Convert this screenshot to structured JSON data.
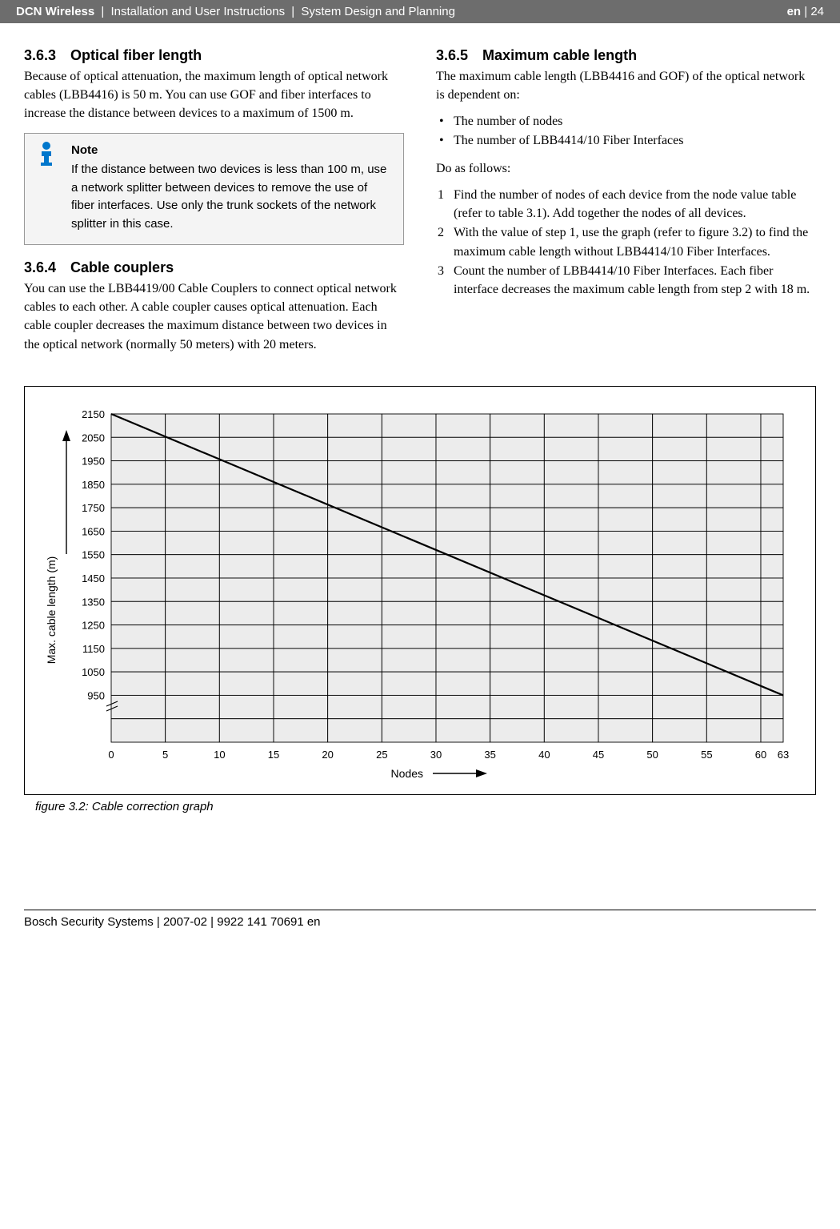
{
  "header": {
    "product": "DCN Wireless",
    "sep": " | ",
    "doc": "Installation and User Instructions",
    "section": "System Design and Planning",
    "lang": "en",
    "page": "24"
  },
  "sections": {
    "s363": {
      "num": "3.6.3",
      "title": "Optical fiber length",
      "body": "Because of optical attenuation, the maximum length of optical network cables (LBB4416) is 50 m. You can use GOF and fiber interfaces to increase the distance between devices to a maximum of 1500 m."
    },
    "note": {
      "title": "Note",
      "body": "If the distance between two devices is less than 100 m, use a network splitter between devices to remove the use of fiber interfaces. Use only the trunk sockets of the network splitter in this case."
    },
    "s364": {
      "num": "3.6.4",
      "title": "Cable couplers",
      "body": "You can use the LBB4419/00 Cable Couplers to connect optical network cables to each other. A cable coupler causes optical attenuation. Each cable coupler decreases the maximum distance between two devices in the optical network (normally 50 meters) with 20 meters."
    },
    "s365": {
      "num": "3.6.5",
      "title": "Maximum cable length",
      "intro": "The maximum cable length (LBB4416 and GOF) of the optical network is dependent on:",
      "bullets": [
        "The number of nodes",
        "The number of LBB4414/10 Fiber Interfaces"
      ],
      "do_as": "Do as follows:",
      "steps": [
        "Find the number of nodes of each device from the node value table (refer to table 3.1). Add together the nodes of all devices.",
        "With the value of step 1, use the graph (refer to figure 3.2) to find the maximum cable length without LBB4414/10 Fiber Interfaces.",
        "Count the number of LBB4414/10 Fiber Interfaces. Each fiber interface decreases the maximum cable length from step 2 with 18 m."
      ]
    }
  },
  "figure": {
    "caption": "figure 3.2: Cable correction graph",
    "ylabel": "Max. cable length (m)",
    "xlabel": "Nodes",
    "y_ticks": [
      2150,
      2050,
      1950,
      1850,
      1750,
      1650,
      1550,
      1450,
      1350,
      1250,
      1150,
      1050,
      950
    ],
    "x_ticks": [
      0,
      5,
      10,
      15,
      20,
      25,
      30,
      35,
      40,
      45,
      50,
      55,
      60,
      63
    ],
    "line": {
      "x1": 0,
      "y1": 2150,
      "x2": 63,
      "y2": 950
    },
    "grid_fill": "#ececec",
    "grid_stroke": "#000000",
    "tick_fontsize": 13
  },
  "footer": "Bosch Security Systems | 2007-02 | 9922 141 70691 en"
}
